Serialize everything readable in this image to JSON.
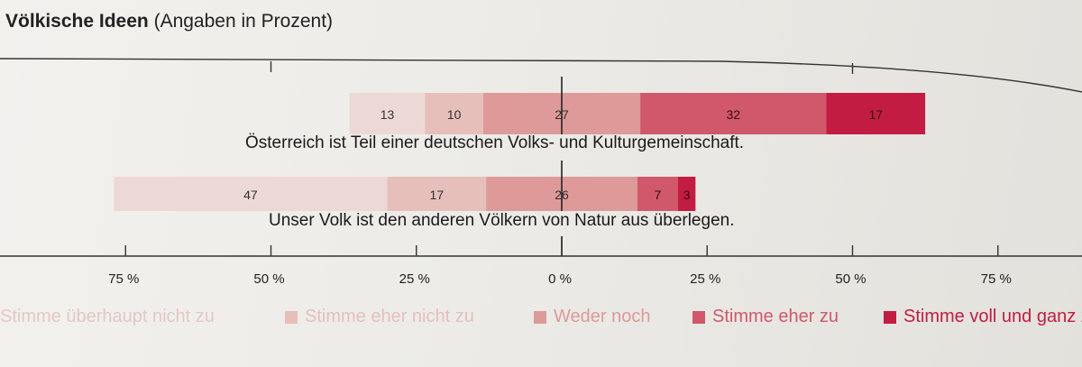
{
  "chart_data": {
    "type": "bar",
    "subtype": "diverging-stacked-horizontal",
    "title": "Völkische Ideen",
    "subtitle": "(Angaben in Prozent)",
    "xlim": [
      -75,
      75
    ],
    "ticks": [
      -75,
      -50,
      -25,
      0,
      25,
      50,
      75
    ],
    "tick_labels": [
      "75 %",
      "50 %",
      "25 %",
      "0 %",
      "25 %",
      "50 %",
      "75 %"
    ],
    "categories": [
      "Österreich ist Teil einer deutschen Volks- und Kulturgemeinschaft.",
      "Unser Volk ist den anderen Völkern von Natur aus überlegen."
    ],
    "series": [
      {
        "name": "Stimme überhaupt nicht zu",
        "color": "#ecd9d5",
        "values": [
          13,
          47
        ]
      },
      {
        "name": "Stimme eher nicht zu",
        "color": "#e6bfbb",
        "values": [
          10,
          17
        ]
      },
      {
        "name": "Weder noch",
        "color": "#dd9a98",
        "values": [
          27,
          26
        ]
      },
      {
        "name": "Stimme eher zu",
        "color": "#d0586a",
        "values": [
          32,
          7
        ]
      },
      {
        "name": "Stimme voll und ganz zu",
        "color": "#c21c42",
        "values": [
          17,
          3
        ]
      }
    ],
    "legend_position": "bottom"
  }
}
